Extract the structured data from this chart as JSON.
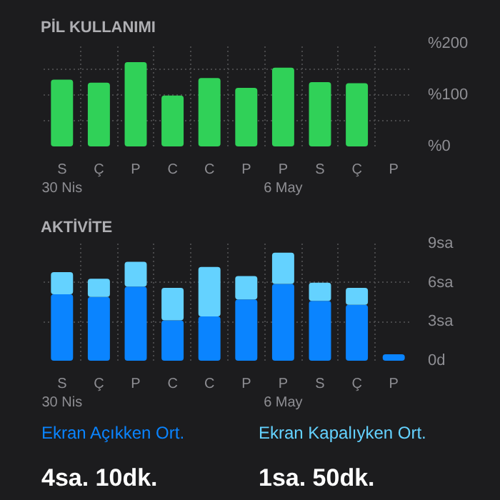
{
  "chart_data": [
    {
      "type": "bar",
      "title": "PİL KULLANIMI",
      "categories": [
        "S\n30 Nis",
        "Ç",
        "P",
        "C",
        "C",
        "P",
        "P\n6 May",
        "S",
        "Ç",
        "P"
      ],
      "series": [
        {
          "color": "#30d158",
          "values": [
            130,
            124,
            164,
            99,
            133,
            114,
            153,
            125,
            123,
            null
          ]
        }
      ],
      "ylim": [
        0,
        200
      ],
      "yticks": [
        {
          "value": 0,
          "label": "%0"
        },
        {
          "value": 50,
          "label": null
        },
        {
          "value": 100,
          "label": "%100"
        },
        {
          "value": 150,
          "label": null
        },
        {
          "value": 200,
          "label": "%200"
        }
      ],
      "grid": true
    },
    {
      "type": "bar",
      "title": "AKTİVİTE",
      "stacked": true,
      "categories": [
        "S\n30 Nis",
        "Ç",
        "P",
        "C",
        "C",
        "P",
        "P\n6 May",
        "S",
        "Ç",
        "P"
      ],
      "series": [
        {
          "color": "#0a84ff",
          "values": [
            5.1,
            4.9,
            5.7,
            3.1,
            3.4,
            4.7,
            5.9,
            4.6,
            4.3,
            0.5
          ]
        },
        {
          "color": "#64d2ff",
          "values": [
            1.7,
            1.4,
            1.9,
            2.5,
            3.8,
            1.8,
            2.4,
            1.4,
            1.3,
            0
          ]
        }
      ],
      "ylim": [
        0,
        9
      ],
      "yticks": [
        {
          "value": 0,
          "label": "0d"
        },
        {
          "value": 3,
          "label": "3sa"
        },
        {
          "value": 6,
          "label": "6sa"
        },
        {
          "value": 9,
          "label": "9sa"
        }
      ],
      "grid": true,
      "annotations": [
        "Ekran Açıkken Ort.",
        "4sa. 10dk.",
        "Ekran Kapalıyken Ort.",
        "1sa. 50dk."
      ]
    }
  ]
}
